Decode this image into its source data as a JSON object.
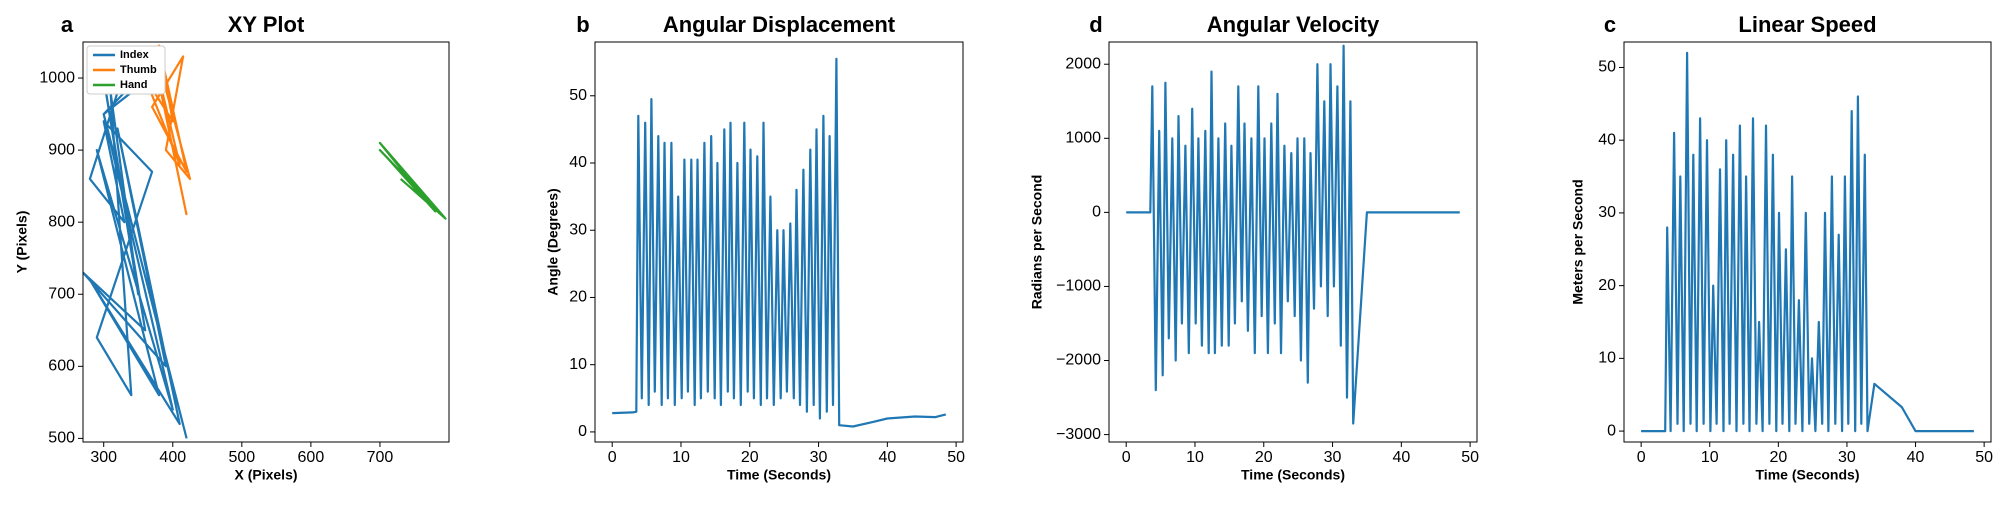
{
  "chart_data": [
    {
      "type": "xy-line",
      "letter": "a",
      "title": "XY Plot",
      "x_label": "X (Pixels)",
      "y_label": "Y (Pixels)",
      "xlim": [
        270,
        800
      ],
      "xticks": [
        300,
        400,
        500,
        600,
        700
      ],
      "ylim": [
        495,
        1050
      ],
      "yticks": [
        500,
        600,
        700,
        800,
        900,
        1000
      ],
      "legend": "upper-left",
      "series": [
        {
          "name": "Index",
          "color": "#1f77b4",
          "x": [
            420,
            300,
            400,
            290,
            380,
            280,
            410,
            320,
            390,
            270,
            360,
            300,
            350,
            310,
            340,
            290,
            370,
            300,
            330,
            280,
            330,
            350,
            300,
            340
          ],
          "values": [
            500,
            950,
            540,
            900,
            560,
            720,
            520,
            930,
            600,
            730,
            650,
            1000,
            700,
            980,
            560,
            640,
            870,
            940,
            800,
            860,
            1010,
            1000,
            950,
            980
          ]
        },
        {
          "name": "Thumb",
          "color": "#ff7f0e",
          "x": [
            420,
            370,
            410,
            360,
            400,
            380,
            420,
            370,
            415,
            390,
            425,
            380
          ],
          "values": [
            810,
            1040,
            880,
            1000,
            940,
            1045,
            870,
            960,
            1030,
            900,
            860,
            1020
          ]
        },
        {
          "name": "Hand",
          "color": "#2ca02c",
          "x": [
            795,
            700,
            780,
            710,
            790,
            720,
            770,
            700,
            795,
            730
          ],
          "values": [
            805,
            910,
            815,
            890,
            810,
            880,
            830,
            900,
            805,
            860
          ]
        }
      ]
    },
    {
      "type": "line",
      "letter": "b",
      "title": "Angular Displacement",
      "x_label": "Time (Seconds)",
      "y_label": "Angle (Degrees)",
      "xlim": [
        -2.5,
        51
      ],
      "xticks": [
        0,
        10,
        20,
        30,
        40,
        50
      ],
      "ylim": [
        -1.5,
        58
      ],
      "yticks": [
        0,
        10,
        20,
        30,
        40,
        50
      ],
      "series": [
        {
          "color": "#1f77b4",
          "x": [
            0,
            3,
            3.5,
            3.8,
            4.3,
            4.8,
            5.3,
            5.7,
            6.2,
            6.7,
            7.2,
            7.6,
            8.1,
            8.6,
            9.1,
            9.6,
            10.1,
            10.5,
            11.0,
            11.5,
            12.0,
            12.4,
            12.9,
            13.4,
            13.9,
            14.4,
            14.9,
            15.3,
            15.8,
            16.3,
            16.8,
            17.2,
            17.7,
            18.2,
            18.7,
            19.2,
            19.7,
            20.1,
            20.6,
            21.1,
            21.6,
            22.0,
            22.5,
            23.0,
            23.5,
            24.0,
            24.5,
            24.9,
            25.4,
            25.9,
            26.4,
            26.8,
            27.3,
            27.8,
            28.3,
            28.8,
            29.3,
            29.7,
            30.2,
            30.7,
            31.2,
            31.6,
            32.1,
            32.6,
            33.0,
            35,
            38,
            40,
            44,
            47,
            48.5
          ],
          "values": [
            2.8,
            2.9,
            3,
            47,
            5,
            46,
            4,
            49.5,
            6,
            44,
            4,
            43,
            5,
            43,
            4,
            35,
            5,
            40.5,
            6,
            40.5,
            4,
            40.5,
            5,
            43,
            6,
            44,
            5,
            40,
            4,
            45,
            6,
            46,
            5,
            40,
            4,
            46,
            6,
            42,
            5,
            41,
            4,
            46,
            5,
            35,
            4,
            30,
            5,
            30,
            6,
            31,
            5,
            36,
            4,
            39,
            3,
            42,
            4,
            45,
            2,
            47,
            3,
            44,
            4,
            55.5,
            1,
            0.8,
            1.5,
            2,
            2.3,
            2.2,
            2.6
          ]
        }
      ]
    },
    {
      "type": "line",
      "letter": "d",
      "title": "Angular Velocity",
      "x_label": "Time (Seconds)",
      "y_label": "Radians per Second",
      "xlim": [
        -2.5,
        51
      ],
      "xticks": [
        0,
        10,
        20,
        30,
        40,
        50
      ],
      "ylim": [
        -3100,
        2300
      ],
      "yticks": [
        {
          "value": -3000,
          "label": "−3000"
        },
        {
          "value": -2000,
          "label": "−2000"
        },
        {
          "value": -1000,
          "label": "−1000"
        },
        0,
        1000,
        2000
      ],
      "series": [
        {
          "color": "#1f77b4",
          "x": [
            0,
            3,
            3.5,
            3.8,
            4.3,
            4.8,
            5.3,
            5.7,
            6.2,
            6.7,
            7.2,
            7.6,
            8.1,
            8.6,
            9.1,
            9.6,
            10.1,
            10.5,
            11.0,
            11.5,
            12.0,
            12.4,
            12.9,
            13.4,
            13.9,
            14.4,
            14.9,
            15.3,
            15.8,
            16.3,
            16.8,
            17.2,
            17.7,
            18.2,
            18.7,
            19.2,
            19.7,
            20.1,
            20.6,
            21.1,
            21.6,
            22.0,
            22.5,
            23.0,
            23.5,
            24.0,
            24.5,
            24.9,
            25.4,
            25.9,
            26.4,
            26.8,
            27.3,
            27.8,
            28.3,
            28.8,
            29.3,
            29.7,
            30.2,
            30.7,
            31.2,
            31.6,
            32.1,
            32.6,
            33.0,
            35,
            38,
            40,
            44,
            47,
            48.5
          ],
          "values": [
            0,
            0,
            0,
            1700,
            -2400,
            1100,
            -2200,
            1750,
            -1700,
            1000,
            -2000,
            1300,
            -1500,
            900,
            -1900,
            1400,
            -1500,
            1000,
            -1800,
            1100,
            -1900,
            1900,
            -1900,
            1000,
            -1800,
            1200,
            -1800,
            900,
            -1500,
            1700,
            -1200,
            1200,
            -1600,
            1000,
            -1900,
            1700,
            -1400,
            1000,
            -1900,
            1200,
            -1500,
            1600,
            -1900,
            900,
            -1200,
            800,
            -1400,
            1000,
            -2000,
            1000,
            -2300,
            800,
            -1300,
            2000,
            -1000,
            1500,
            -1400,
            2000,
            -1000,
            1700,
            -1800,
            2250,
            -2500,
            1500,
            -2850,
            0,
            0,
            0,
            0,
            0,
            0
          ]
        }
      ]
    },
    {
      "type": "line",
      "letter": "c",
      "title": "Linear Speed",
      "x_label": "Time (Seconds)",
      "y_label": "Meters per Second",
      "xlim": [
        -2.5,
        51
      ],
      "xticks": [
        0,
        10,
        20,
        30,
        40,
        50
      ],
      "ylim": [
        -1.5,
        53.5
      ],
      "yticks": [
        0,
        10,
        20,
        30,
        40,
        50
      ],
      "series": [
        {
          "color": "#1f77b4",
          "x": [
            0,
            3,
            3.5,
            3.8,
            4.3,
            4.8,
            5.3,
            5.7,
            6.2,
            6.7,
            7.2,
            7.6,
            8.1,
            8.6,
            9.1,
            9.6,
            10.1,
            10.5,
            11.0,
            11.5,
            12.0,
            12.4,
            12.9,
            13.4,
            13.9,
            14.4,
            14.9,
            15.3,
            15.8,
            16.3,
            16.8,
            17.2,
            17.7,
            18.2,
            18.7,
            19.2,
            19.7,
            20.1,
            20.6,
            21.1,
            21.6,
            22.0,
            22.5,
            23.0,
            23.5,
            24.0,
            24.5,
            24.9,
            25.4,
            25.9,
            26.4,
            26.8,
            27.3,
            27.8,
            28.3,
            28.8,
            29.3,
            29.7,
            30.2,
            30.7,
            31.2,
            31.6,
            32.1,
            32.6,
            33.0,
            34,
            38,
            40,
            44,
            47,
            48.5
          ],
          "values": [
            0,
            0,
            0,
            28,
            0,
            41,
            1,
            35,
            0,
            52,
            1,
            38,
            0,
            43,
            1,
            40,
            0,
            20,
            1,
            36,
            0,
            40,
            1,
            38,
            0,
            42,
            1,
            35,
            0,
            43,
            1,
            15,
            0,
            42,
            1,
            38,
            0,
            30,
            1,
            25,
            0,
            35,
            1,
            18,
            0,
            30,
            1,
            10,
            0,
            15,
            1,
            30,
            0,
            35,
            1,
            27,
            0,
            35,
            1,
            44,
            0,
            46,
            1,
            38,
            0,
            6.5,
            3.3,
            0,
            0,
            0,
            0
          ]
        }
      ]
    }
  ]
}
